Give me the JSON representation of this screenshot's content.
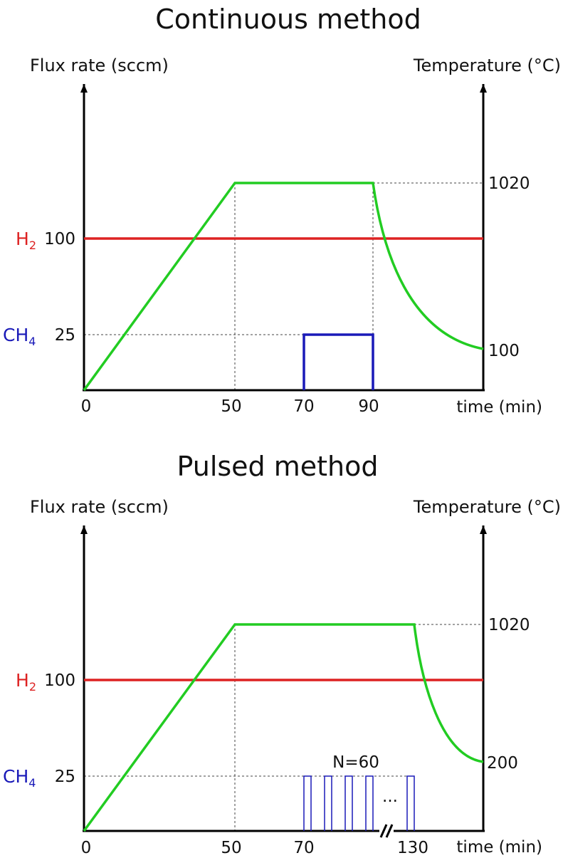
{
  "colors": {
    "h2": "#dd2222",
    "ch4": "#1a1ab8",
    "temperature": "#22cc22",
    "axis": "#000000",
    "guide": "#444444"
  },
  "panels": [
    {
      "title": "Continuous method",
      "y_left_label": "Flux rate (sccm)",
      "y_right_label": "Temperature (°C)",
      "x_label": "time (min)",
      "x_ticks": [
        "0",
        "50",
        "70",
        "90"
      ],
      "left_ticks": {
        "h2": "100",
        "ch4": "25"
      },
      "right_ticks": [
        "1020",
        "100"
      ],
      "gas_labels": {
        "h2_main": "H",
        "h2_sub": "2",
        "ch4_main": "CH",
        "ch4_sub": "4"
      },
      "note": "",
      "dots": ""
    },
    {
      "title": "Pulsed method",
      "y_left_label": "Flux rate (sccm)",
      "y_right_label": "Temperature (°C)",
      "x_label": "time (min)",
      "x_ticks": [
        "0",
        "50",
        "70",
        "130"
      ],
      "left_ticks": {
        "h2": "100",
        "ch4": "25"
      },
      "right_ticks": [
        "1020",
        "200"
      ],
      "gas_labels": {
        "h2_main": "H",
        "h2_sub": "2",
        "ch4_main": "CH",
        "ch4_sub": "4"
      },
      "note": "N=60",
      "dots": "..."
    }
  ]
}
